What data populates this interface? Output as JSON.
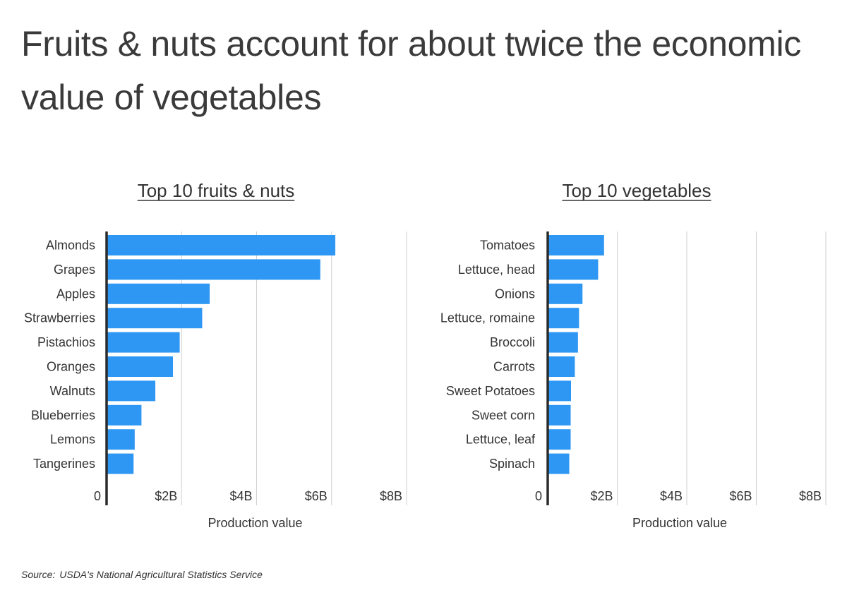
{
  "title": "Fruits & nuts account for about twice the economic value of vegetables",
  "source": {
    "label": "Source:",
    "text": "USDA's National Agricultural Statistics Service"
  },
  "colors": {
    "bar": "#2e97f4",
    "grid": "#d0d0d0",
    "axis": "#2b2b2b",
    "text": "#333333"
  },
  "chart_data": [
    {
      "type": "bar",
      "orientation": "horizontal",
      "title": "Top 10 fruits & nuts",
      "xlabel": "Production value",
      "ylabel": "",
      "xlim": [
        0,
        8
      ],
      "xunit": "billion USD",
      "xticks": [
        0,
        2,
        4,
        6,
        8
      ],
      "xtick_labels": [
        "0",
        "$2B",
        "$4B",
        "$6B",
        "$8B"
      ],
      "grid": true,
      "categories": [
        "Almonds",
        "Grapes",
        "Apples",
        "Strawberries",
        "Pistachios",
        "Oranges",
        "Walnuts",
        "Blueberries",
        "Lemons",
        "Tangerines"
      ],
      "values": [
        6.1,
        5.7,
        2.75,
        2.55,
        1.95,
        1.77,
        1.3,
        0.93,
        0.75,
        0.72
      ]
    },
    {
      "type": "bar",
      "orientation": "horizontal",
      "title": "Top 10 vegetables",
      "xlabel": "Production value",
      "ylabel": "",
      "xlim": [
        0,
        8
      ],
      "xunit": "billion USD",
      "xticks": [
        0,
        2,
        4,
        6,
        8
      ],
      "xtick_labels": [
        "0",
        "$2B",
        "$4B",
        "$6B",
        "$8B"
      ],
      "grid": true,
      "categories": [
        "Tomatoes",
        "Lettuce, head",
        "Onions",
        "Lettuce, romaine",
        "Broccoli",
        "Carrots",
        "Sweet Potatoes",
        "Sweet corn",
        "Lettuce, leaf",
        "Spinach"
      ],
      "values": [
        1.62,
        1.45,
        1.0,
        0.9,
        0.87,
        0.78,
        0.67,
        0.66,
        0.66,
        0.62
      ]
    }
  ]
}
